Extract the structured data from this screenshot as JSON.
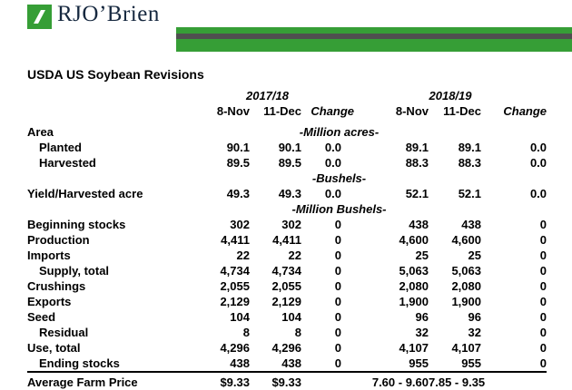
{
  "brand": {
    "name": "RJO’Brien",
    "colors": {
      "green": "#369e36",
      "stripe": "#4f4f4f",
      "logo_text": "#16283f"
    }
  },
  "title": "USDA US Soybean Revisions",
  "table": {
    "group_headers": [
      "2017/18",
      "2018/19"
    ],
    "col_headers": [
      "8-Nov",
      "11-Dec",
      "Change",
      "8-Nov",
      "11-Dec",
      "Change"
    ],
    "rows": [
      {
        "label": "Area",
        "units": "-Million acres-"
      },
      {
        "label": "Planted",
        "indent": 1,
        "values": [
          "90.1",
          "90.1",
          "0.0",
          "89.1",
          "89.1",
          "0.0"
        ]
      },
      {
        "label": "Harvested",
        "indent": 1,
        "values": [
          "89.5",
          "89.5",
          "0.0",
          "88.3",
          "88.3",
          "0.0"
        ]
      },
      {
        "label": "",
        "units": "-Bushels-"
      },
      {
        "label": "Yield/Harvested acre",
        "values": [
          "49.3",
          "49.3",
          "0.0",
          "52.1",
          "52.1",
          "0.0"
        ]
      },
      {
        "label": "",
        "units": "-Million Bushels-"
      },
      {
        "label": "Beginning stocks",
        "values": [
          "302",
          "302",
          "0",
          "438",
          "438",
          "0"
        ]
      },
      {
        "label": "Production",
        "values": [
          "4,411",
          "4,411",
          "0",
          "4,600",
          "4,600",
          "0"
        ]
      },
      {
        "label": "Imports",
        "values": [
          "22",
          "22",
          "0",
          "25",
          "25",
          "0"
        ]
      },
      {
        "label": "Supply, total",
        "indent": 1,
        "values": [
          "4,734",
          "4,734",
          "0",
          "5,063",
          "5,063",
          "0"
        ]
      },
      {
        "label": "Crushings",
        "values": [
          "2,055",
          "2,055",
          "0",
          "2,080",
          "2,080",
          "0"
        ]
      },
      {
        "label": "Exports",
        "values": [
          "2,129",
          "2,129",
          "0",
          "1,900",
          "1,900",
          "0"
        ]
      },
      {
        "label": "Seed",
        "values": [
          "104",
          "104",
          "0",
          "96",
          "96",
          "0"
        ]
      },
      {
        "label": "Residual",
        "indent": 1,
        "values": [
          "8",
          "8",
          "0",
          "32",
          "32",
          "0"
        ]
      },
      {
        "label": "Use, total",
        "values": [
          "4,296",
          "4,296",
          "0",
          "4,107",
          "4,107",
          "0"
        ]
      },
      {
        "label": "Ending stocks",
        "indent": 1,
        "values": [
          "438",
          "438",
          "0",
          "955",
          "955",
          "0"
        ]
      },
      {
        "label": "Average Farm Price",
        "separator": true,
        "values": [
          "$9.33",
          "$9.33",
          "",
          "7.60 - 9.60",
          "7.85 - 9.35",
          ""
        ]
      }
    ]
  }
}
